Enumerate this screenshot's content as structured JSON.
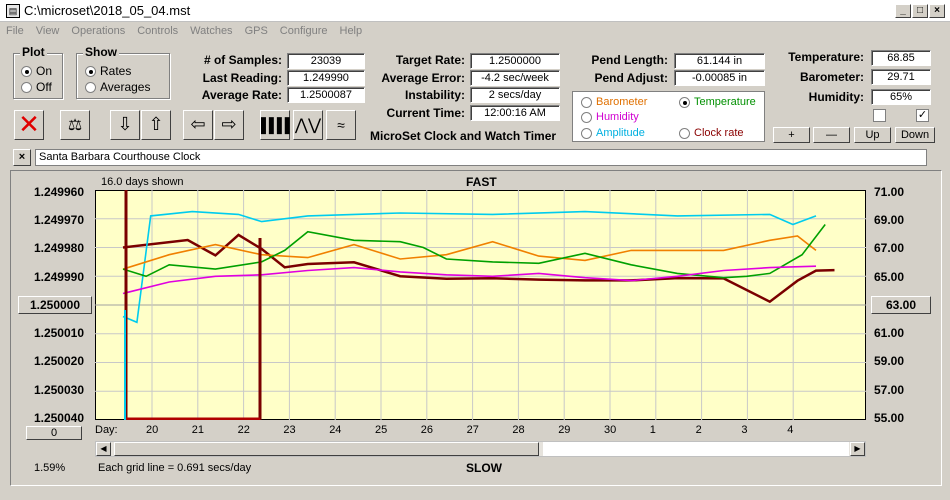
{
  "window": {
    "title": "C:\\microset\\2018_05_04.mst"
  },
  "menu": [
    "File",
    "View",
    "Operations",
    "Controls",
    "Watches",
    "GPS",
    "Configure",
    "Help"
  ],
  "plot": {
    "title": "Plot",
    "on": "On",
    "off": "Off",
    "selected": "On"
  },
  "show": {
    "title": "Show",
    "rates": "Rates",
    "averages": "Averages",
    "selected": "Rates"
  },
  "stats": {
    "samples_label": "# of Samples:",
    "samples": "23039",
    "last_label": "Last Reading:",
    "last": "1.249990",
    "avg_label": "Average Rate:",
    "avg": "1.2500087"
  },
  "rates": {
    "target_label": "Target Rate:",
    "target": "1.2500000",
    "err_label": "Average Error:",
    "err": "-4.2 sec/week",
    "inst_label": "Instability:",
    "inst": "2 secs/day",
    "time_label": "Current Time:",
    "time": "12:00:16 AM"
  },
  "pend": {
    "length_label": "Pend Length:",
    "length": "61.144 in",
    "adjust_label": "Pend Adjust:",
    "adjust": "-0.00085 in"
  },
  "env": {
    "temp_label": "Temperature:",
    "temp": "68.85",
    "baro_label": "Barometer:",
    "baro": "29.71",
    "hum_label": "Humidity:",
    "hum": "65%"
  },
  "sensor_radio": {
    "barometer": "Barometer",
    "temperature": "Temperature",
    "humidity": "Humidity",
    "amplitude": "Amplitude",
    "clock_rate": "Clock rate",
    "selected": "Temperature"
  },
  "app_caption": "MicroSet Clock and Watch Timer",
  "adjust_buttons": {
    "plus": "+",
    "minus": "—",
    "up": "Up",
    "down": "Down"
  },
  "clock_name": "Santa Barbara Courthouse Clock",
  "chart": {
    "days_shown": "16.0 days shown",
    "top_label": "FAST",
    "bottom_label": "SLOW",
    "grid_note": "Each grid line = 0.691 secs/day",
    "percent": "1.59%",
    "day_axis_label": "Day:",
    "center_left": "1.250000",
    "center_right": "63.00",
    "scroll_left_value": "0"
  },
  "chart_data": {
    "type": "line",
    "title": "",
    "left_axis_ticks": [
      "1.249960",
      "1.249970",
      "1.249980",
      "1.249990",
      "1.250000",
      "1.250010",
      "1.250020",
      "1.250030",
      "1.250040"
    ],
    "right_axis_ticks": [
      "71.00",
      "69.00",
      "67.00",
      "65.00",
      "63.00",
      "61.00",
      "59.00",
      "57.00",
      "55.00"
    ],
    "x_ticks": [
      "20",
      "21",
      "22",
      "23",
      "24",
      "25",
      "26",
      "27",
      "28",
      "29",
      "30",
      "1",
      "2",
      "3",
      "4"
    ],
    "left_range": [
      1.24996,
      1.25004
    ],
    "right_range": [
      55,
      71
    ],
    "series": [
      {
        "color": "#7a0000",
        "values": [
          [
            0,
            67
          ],
          [
            1.4,
            67.5
          ],
          [
            2,
            66.5
          ],
          [
            2.5,
            67.8
          ],
          [
            3,
            67
          ],
          [
            3.5,
            65.5
          ],
          [
            4,
            66
          ],
          [
            5,
            65.8
          ],
          [
            6,
            65.2
          ],
          [
            7,
            64.6
          ],
          [
            8,
            65.1
          ],
          [
            9,
            64.5
          ],
          [
            10,
            65
          ],
          [
            11,
            64.4
          ],
          [
            12,
            65.2
          ],
          [
            13,
            64.5
          ],
          [
            14,
            63.6
          ],
          [
            14.6,
            64.3
          ],
          [
            15,
            65.8
          ],
          [
            15.4,
            65
          ]
        ]
      },
      {
        "color": "#00ccee",
        "values": [
          [
            0,
            62.2
          ],
          [
            0.3,
            61.8
          ],
          [
            0.6,
            69.2
          ],
          [
            1.5,
            69.5
          ],
          [
            2.5,
            69.3
          ],
          [
            3,
            68.8
          ],
          [
            4,
            69.2
          ],
          [
            6,
            69.4
          ],
          [
            8,
            69.3
          ],
          [
            10,
            69.5
          ],
          [
            12,
            69.2
          ],
          [
            14,
            69.3
          ],
          [
            14.5,
            68.6
          ],
          [
            15,
            69.2
          ]
        ]
      },
      {
        "color": "#f08000",
        "values": [
          [
            0,
            65.5
          ],
          [
            1,
            66.5
          ],
          [
            2,
            67.2
          ],
          [
            3,
            66.5
          ],
          [
            4,
            66.3
          ],
          [
            5,
            67.2
          ],
          [
            6,
            66.2
          ],
          [
            7,
            66.5
          ],
          [
            8,
            67.4
          ],
          [
            9,
            66.4
          ],
          [
            10,
            66.1
          ],
          [
            11,
            66.8
          ],
          [
            12,
            66.8
          ],
          [
            13,
            66.8
          ],
          [
            14,
            67.5
          ],
          [
            14.6,
            67.8
          ],
          [
            15,
            66.8
          ]
        ]
      },
      {
        "color": "#00a000",
        "values": [
          [
            0,
            65.5
          ],
          [
            0.5,
            65
          ],
          [
            1,
            65.8
          ],
          [
            2,
            65.5
          ],
          [
            3,
            66
          ],
          [
            3.5,
            66.8
          ],
          [
            4,
            68.1
          ],
          [
            5,
            67.5
          ],
          [
            6,
            67.4
          ],
          [
            6.5,
            67
          ],
          [
            7,
            66.2
          ],
          [
            8,
            66
          ],
          [
            9,
            65.9
          ],
          [
            10,
            66.6
          ],
          [
            11,
            65.8
          ],
          [
            12,
            65.2
          ],
          [
            13,
            64.9
          ],
          [
            13.5,
            65
          ],
          [
            14,
            65.2
          ],
          [
            14.7,
            66.5
          ],
          [
            15.2,
            68.6
          ]
        ]
      },
      {
        "color": "#e000e0",
        "values": [
          [
            0,
            63.8
          ],
          [
            1,
            64.6
          ],
          [
            2,
            65
          ],
          [
            3,
            65.1
          ],
          [
            4,
            65.4
          ],
          [
            5,
            65.6
          ],
          [
            6,
            65.3
          ],
          [
            7,
            65.1
          ],
          [
            8,
            65
          ],
          [
            9,
            65.2
          ],
          [
            10,
            64.9
          ],
          [
            11,
            64.7
          ],
          [
            12,
            65
          ],
          [
            13,
            65.4
          ],
          [
            14,
            65.6
          ],
          [
            15,
            65.7
          ]
        ]
      }
    ]
  }
}
